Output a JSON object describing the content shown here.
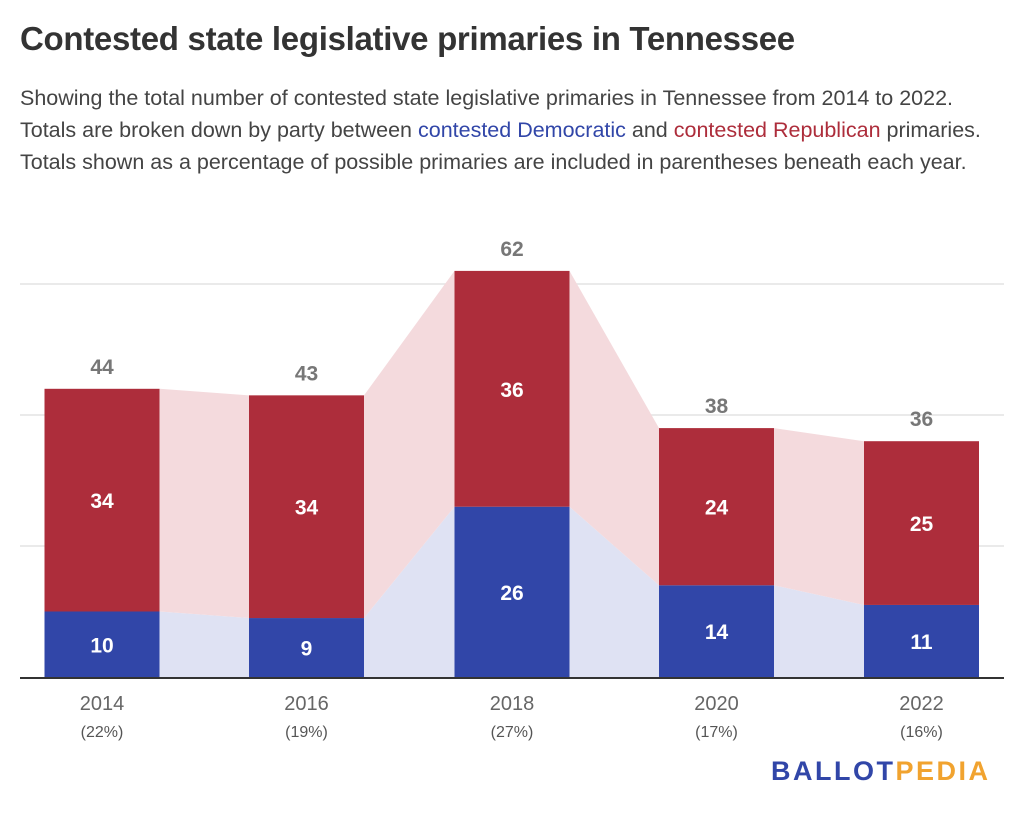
{
  "title": "Contested state legislative primaries in Tennessee",
  "subtitle": {
    "part1": "Showing the total number of contested state legislative primaries in Tennessee from 2014 to 2022. Totals are broken down by party between ",
    "dem_label": "contested Democratic",
    "part2": " and ",
    "rep_label": "contested Republican",
    "part3": " primaries. Totals shown as a percentage of possible primaries are included in parentheses beneath each year."
  },
  "colors": {
    "democratic": "#3146a8",
    "republican": "#ad2d3b",
    "democratic_area": "#dfe2f3",
    "republican_area": "#f4dadd",
    "total_label": "#777777",
    "gridline": "#e3e3e3"
  },
  "chart_data": {
    "type": "bar",
    "stacked": true,
    "categories": [
      "2014",
      "2016",
      "2018",
      "2020",
      "2022"
    ],
    "category_sublabels": [
      "(22%)",
      "(19%)",
      "(27%)",
      "(17%)",
      "(16%)"
    ],
    "series": [
      {
        "name": "contested Democratic",
        "values": [
          10,
          9,
          26,
          14,
          11
        ]
      },
      {
        "name": "contested Republican",
        "values": [
          34,
          34,
          36,
          24,
          25
        ]
      }
    ],
    "totals": [
      44,
      43,
      62,
      38,
      36
    ],
    "ylim": [
      0,
      60
    ],
    "grid": true
  },
  "logo": {
    "part1": "BALLOT",
    "part2": "PEDIA"
  }
}
